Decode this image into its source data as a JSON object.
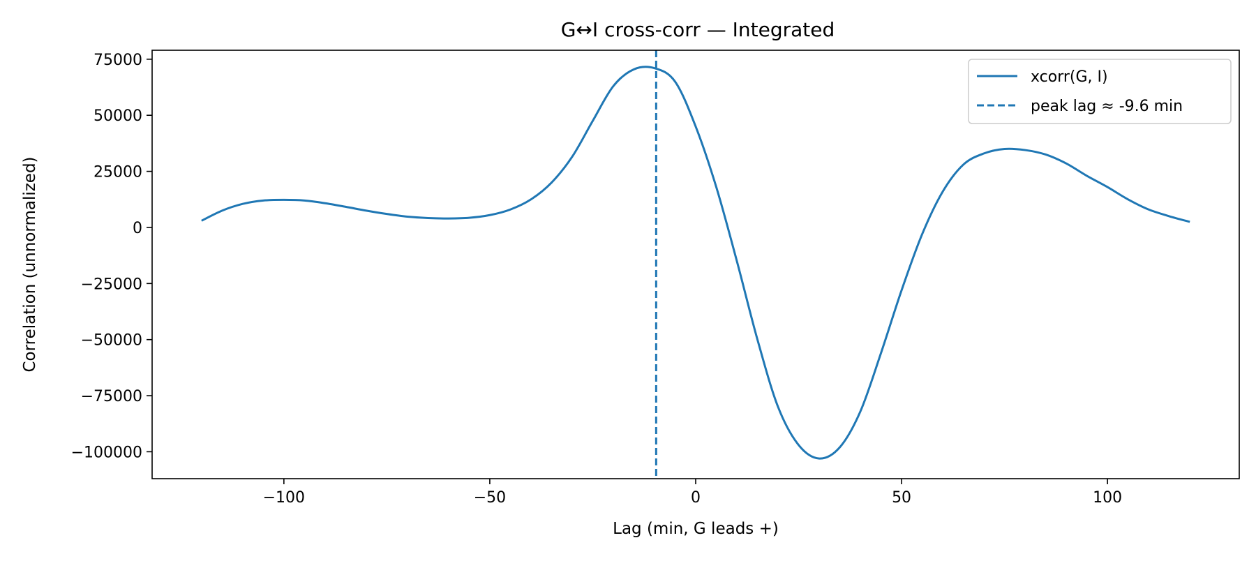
{
  "chart_data": {
    "type": "line",
    "title": "G↔I cross-corr — Integrated",
    "xlabel": "Lag (min, G leads +)",
    "ylabel": "Correlation (unnormalized)",
    "xlim": [
      -132,
      132
    ],
    "ylim": [
      -112000,
      79000
    ],
    "x_ticks": [
      -100,
      -50,
      0,
      50,
      100
    ],
    "x_tick_labels": [
      "−100",
      "−50",
      "0",
      "50",
      "100"
    ],
    "y_ticks": [
      75000,
      50000,
      25000,
      0,
      -25000,
      -50000,
      -75000,
      -100000
    ],
    "y_tick_labels": [
      "75000",
      "50000",
      "25000",
      "0",
      "−25000",
      "−50000",
      "−75000",
      "−100000"
    ],
    "grid": false,
    "legend_position": "top-right",
    "series": [
      {
        "name": "xcorr(G, I)",
        "color": "#1f77b4",
        "style": "solid",
        "x": [
          -120,
          -115,
          -110,
          -105,
          -100,
          -95,
          -90,
          -85,
          -80,
          -75,
          -70,
          -65,
          -60,
          -55,
          -50,
          -45,
          -40,
          -35,
          -30,
          -25,
          -20,
          -15,
          -10,
          -5,
          0,
          5,
          10,
          15,
          20,
          25,
          30,
          35,
          40,
          45,
          50,
          55,
          60,
          65,
          70,
          75,
          80,
          85,
          90,
          95,
          100,
          105,
          110,
          115,
          120
        ],
        "y": [
          3000,
          7500,
          10500,
          12000,
          12300,
          12000,
          10800,
          9200,
          7500,
          6000,
          4800,
          4200,
          4000,
          4300,
          5500,
          8000,
          12500,
          20000,
          31500,
          47500,
          63000,
          70500,
          71000,
          65000,
          45000,
          18000,
          -15000,
          -50000,
          -80000,
          -97000,
          -103000,
          -98000,
          -82000,
          -56000,
          -28000,
          -3000,
          16000,
          28000,
          33000,
          35000,
          34500,
          32500,
          28500,
          23000,
          18000,
          12500,
          8000,
          5000,
          2500
        ]
      },
      {
        "name": "peak lag ≈ -9.6 min",
        "color": "#1f77b4",
        "style": "dashed",
        "vline_x": -9.6
      }
    ]
  }
}
